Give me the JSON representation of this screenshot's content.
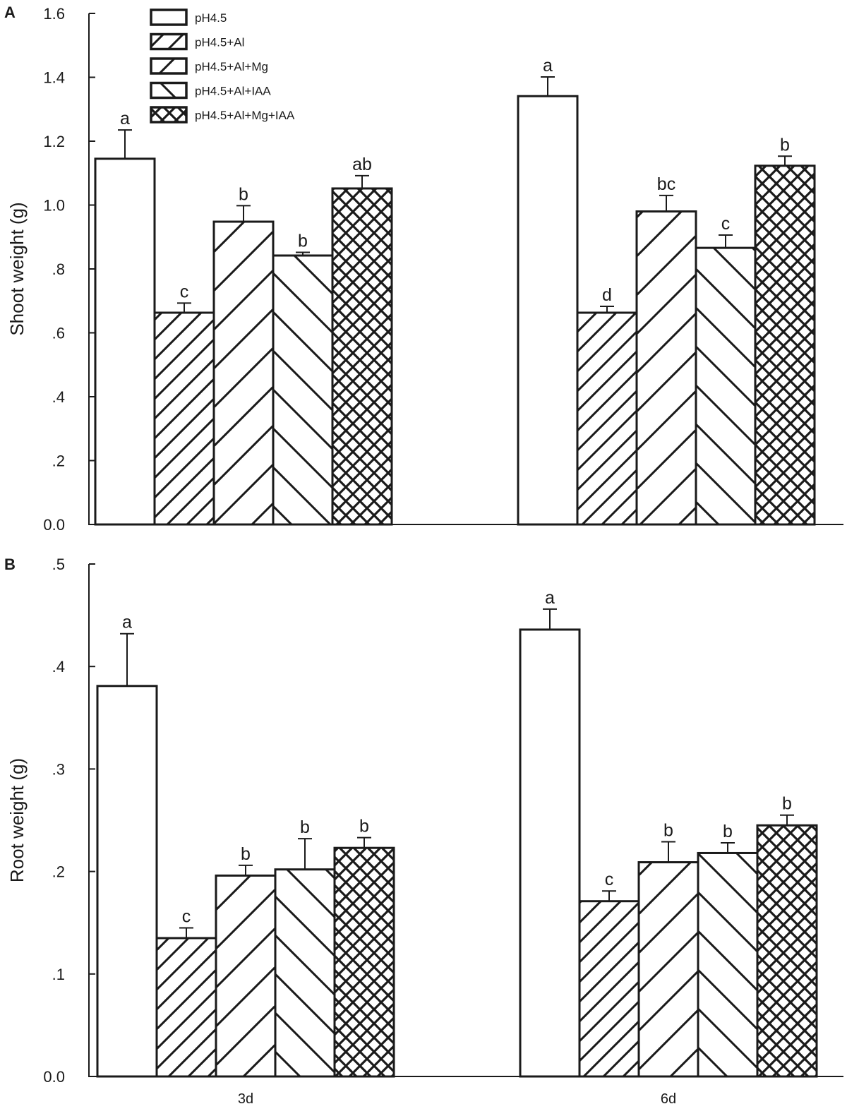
{
  "chart_data": [
    {
      "type": "bar",
      "panel_label": "A",
      "title": "",
      "xlabel": "",
      "ylabel": "Shoot weight (g)",
      "ylim": [
        0,
        1.6
      ],
      "yticks": [
        0.0,
        0.2,
        0.4,
        0.6,
        0.8,
        1.0,
        1.2,
        1.4,
        1.6
      ],
      "ytick_labels": [
        "0.0",
        ".2",
        ".4",
        ".6",
        ".8",
        "1.0",
        "1.2",
        "1.4",
        "1.6"
      ],
      "categories": [
        "3d",
        "6d"
      ],
      "show_category_labels": false,
      "grid": false,
      "legend_position": "top-center",
      "series": [
        {
          "name": "pH4.5",
          "pattern": "none",
          "values": [
            1.145,
            1.341
          ],
          "errors": [
            0.09,
            0.06
          ],
          "sig_letters": [
            "a",
            "a"
          ]
        },
        {
          "name": "pH4.5+Al",
          "pattern": "dense-forward-diagonal",
          "values": [
            0.663,
            0.663
          ],
          "errors": [
            0.03,
            0.02
          ],
          "sig_letters": [
            "c",
            "d"
          ]
        },
        {
          "name": "pH4.5+Al+Mg",
          "pattern": "wide-forward-diagonal",
          "values": [
            0.948,
            0.98
          ],
          "errors": [
            0.05,
            0.05
          ],
          "sig_letters": [
            "b",
            "bc"
          ]
        },
        {
          "name": "pH4.5+Al+IAA",
          "pattern": "wide-backward-diagonal",
          "values": [
            0.842,
            0.866
          ],
          "errors": [
            0.01,
            0.04
          ],
          "sig_letters": [
            "b",
            "c"
          ]
        },
        {
          "name": "pH4.5+Al+Mg+IAA",
          "pattern": "crosshatch",
          "values": [
            1.052,
            1.123
          ],
          "errors": [
            0.04,
            0.03
          ],
          "sig_letters": [
            "ab",
            "b"
          ]
        }
      ]
    },
    {
      "type": "bar",
      "panel_label": "B",
      "title": "",
      "xlabel": "",
      "ylabel": "Root weight (g)",
      "ylim": [
        0,
        0.5
      ],
      "yticks": [
        0.0,
        0.1,
        0.2,
        0.3,
        0.4,
        0.5
      ],
      "ytick_labels": [
        "0.0",
        ".1",
        ".2",
        ".3",
        ".4",
        ".5"
      ],
      "categories": [
        "3d",
        "6d"
      ],
      "show_category_labels": true,
      "grid": false,
      "series": [
        {
          "name": "pH4.5",
          "pattern": "none",
          "values": [
            0.381,
            0.436
          ],
          "errors": [
            0.051,
            0.02
          ],
          "sig_letters": [
            "a",
            "a"
          ]
        },
        {
          "name": "pH4.5+Al",
          "pattern": "dense-forward-diagonal",
          "values": [
            0.135,
            0.171
          ],
          "errors": [
            0.01,
            0.01
          ],
          "sig_letters": [
            "c",
            "c"
          ]
        },
        {
          "name": "pH4.5+Al+Mg",
          "pattern": "wide-forward-diagonal",
          "values": [
            0.196,
            0.209
          ],
          "errors": [
            0.01,
            0.02
          ],
          "sig_letters": [
            "b",
            "b"
          ]
        },
        {
          "name": "pH4.5+Al+IAA",
          "pattern": "wide-backward-diagonal",
          "values": [
            0.202,
            0.218
          ],
          "errors": [
            0.03,
            0.01
          ],
          "sig_letters": [
            "b",
            "b"
          ]
        },
        {
          "name": "pH4.5+Al+Mg+IAA",
          "pattern": "crosshatch",
          "values": [
            0.223,
            0.245
          ],
          "errors": [
            0.01,
            0.01
          ],
          "sig_letters": [
            "b",
            "b"
          ]
        }
      ]
    }
  ],
  "colors": {
    "ink": "#1a1a1a",
    "background": "#ffffff"
  }
}
